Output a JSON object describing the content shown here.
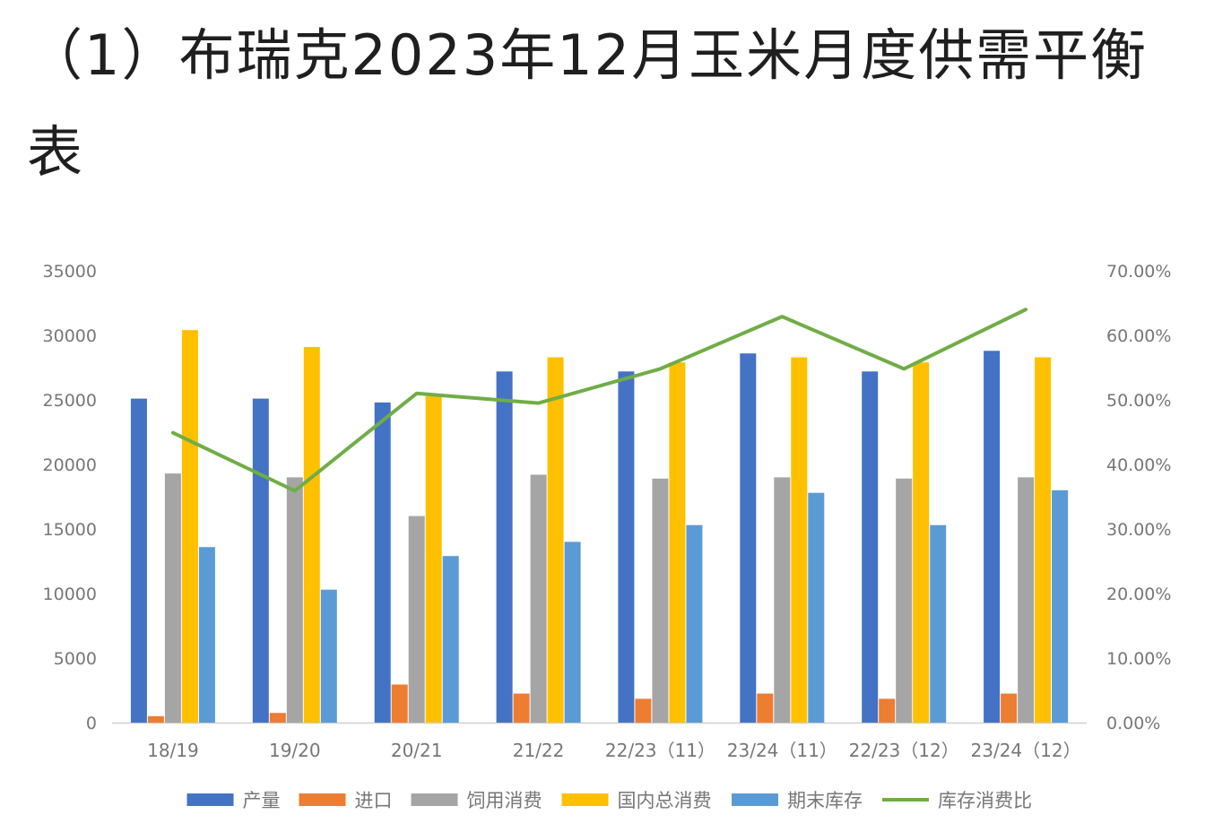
{
  "chart_data": {
    "title": "（1）布瑞克2023年12月玉米月度供需平衡表",
    "type": "bar",
    "categories": [
      "18/19",
      "19/20",
      "20/21",
      "21/22",
      "22/23（11）",
      "23/24（11）",
      "22/23（12）",
      "23/24（12）"
    ],
    "series": [
      {
        "name": "产量",
        "type": "bar",
        "axis": "left",
        "color": "#4472C4",
        "values": [
          25100,
          25100,
          24800,
          27200,
          27200,
          28600,
          27200,
          28800
        ]
      },
      {
        "name": "进口",
        "type": "bar",
        "axis": "left",
        "color": "#ED7D31",
        "values": [
          500,
          750,
          2950,
          2250,
          1850,
          2250,
          1850,
          2250
        ]
      },
      {
        "name": "饲用消费",
        "type": "bar",
        "axis": "left",
        "color": "#A5A5A5",
        "values": [
          19300,
          19000,
          16000,
          19200,
          18900,
          19000,
          18900,
          19000
        ]
      },
      {
        "name": "国内总消费",
        "type": "bar",
        "axis": "left",
        "color": "#FFC000",
        "values": [
          30400,
          29100,
          25300,
          28300,
          27900,
          28300,
          27900,
          28300
        ]
      },
      {
        "name": "期末库存",
        "type": "bar",
        "axis": "left",
        "color": "#5B9BD5",
        "values": [
          13600,
          10300,
          12900,
          14000,
          15300,
          17800,
          15300,
          18000
        ]
      },
      {
        "name": "库存消费比",
        "type": "line",
        "axis": "right",
        "color": "#70AD47",
        "values": [
          44.9,
          35.9,
          51.0,
          49.5,
          54.8,
          62.9,
          54.8,
          64.0
        ]
      }
    ],
    "yleft": {
      "min": 0,
      "max": 35000,
      "ticks": [
        "0",
        "5000",
        "10000",
        "15000",
        "20000",
        "25000",
        "30000",
        "35000"
      ]
    },
    "yright": {
      "min": 0,
      "max": 70,
      "ticks": [
        "0.00%",
        "10.00%",
        "20.00%",
        "30.00%",
        "40.00%",
        "50.00%",
        "60.00%",
        "70.00%"
      ]
    },
    "legend_position": "bottom",
    "grid": false
  }
}
